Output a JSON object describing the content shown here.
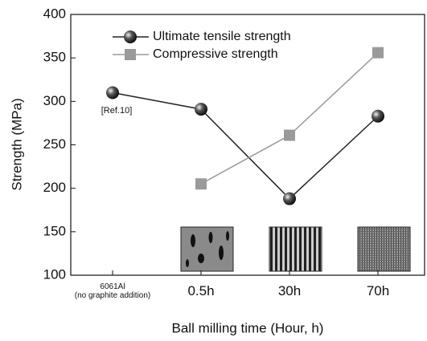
{
  "chart_data": {
    "type": "line",
    "categories": [
      "6061Al\n(no graphite addition)",
      "0.5h",
      "30h",
      "70h"
    ],
    "series": [
      {
        "name": "Ultimate tensile strength",
        "color": "#222222",
        "marker": "sphere",
        "values": [
          310,
          291,
          188,
          283
        ]
      },
      {
        "name": "Compressive strength",
        "color": "#9a9a9a",
        "marker": "square",
        "values": [
          null,
          205,
          261,
          356
        ]
      }
    ],
    "xlabel": "Ball milling time (Hour, h)",
    "ylabel": "Strength (MPa)",
    "ylim": [
      100,
      400
    ],
    "yticks": [
      100,
      150,
      200,
      250,
      300,
      350,
      400
    ],
    "annotation": "[Ref.10]",
    "grid": false,
    "legend": "upper left"
  }
}
